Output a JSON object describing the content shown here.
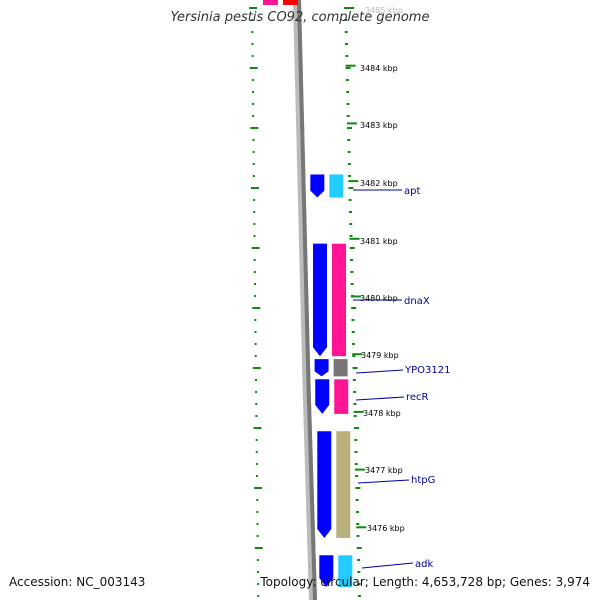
{
  "title": "Yersinia pestis CO92, complete genome",
  "accession": "Accession: NC_003143",
  "summary": "Topology: circular; Length: 4,653,728 bp; Genes: 3,974",
  "scale_labels": [
    {
      "text": "3485 kbp",
      "kbp": 3485
    },
    {
      "text": "3484 kbp",
      "kbp": 3484
    },
    {
      "text": "3483 kbp",
      "kbp": 3483
    },
    {
      "text": "3482 kbp",
      "kbp": 3482
    },
    {
      "text": "3481 kbp",
      "kbp": 3481
    },
    {
      "text": "3480 kbp",
      "kbp": 3480
    },
    {
      "text": "3479 kbp",
      "kbp": 3479
    },
    {
      "text": "3478 kbp",
      "kbp": 3478
    },
    {
      "text": "3477 kbp",
      "kbp": 3477
    },
    {
      "text": "3476 kbp",
      "kbp": 3476
    }
  ],
  "genes": [
    {
      "name": "apt",
      "start_kbp": 3481.75,
      "end_kbp": 3482.15
    },
    {
      "name": "dnaX",
      "start_kbp": 3479.0,
      "end_kbp": 3480.95
    },
    {
      "name": "YPO3121",
      "start_kbp": 3478.65,
      "end_kbp": 3478.95
    },
    {
      "name": "recR",
      "start_kbp": 3478.0,
      "end_kbp": 3478.6
    },
    {
      "name": "htpG",
      "start_kbp": 3475.85,
      "end_kbp": 3477.7
    },
    {
      "name": "adk",
      "start_kbp": 3475.0,
      "end_kbp": 3475.55
    }
  ],
  "colors": {
    "cds": "#0000ff",
    "gene_cds": "#ff1493",
    "gene_rrna": "#22ccff",
    "gene_hypothetical": "#777777",
    "gene_chaperone": "#b8b07a",
    "backbone": "#777777",
    "gc_ticks": "#118811",
    "label_text": "#000099"
  }
}
